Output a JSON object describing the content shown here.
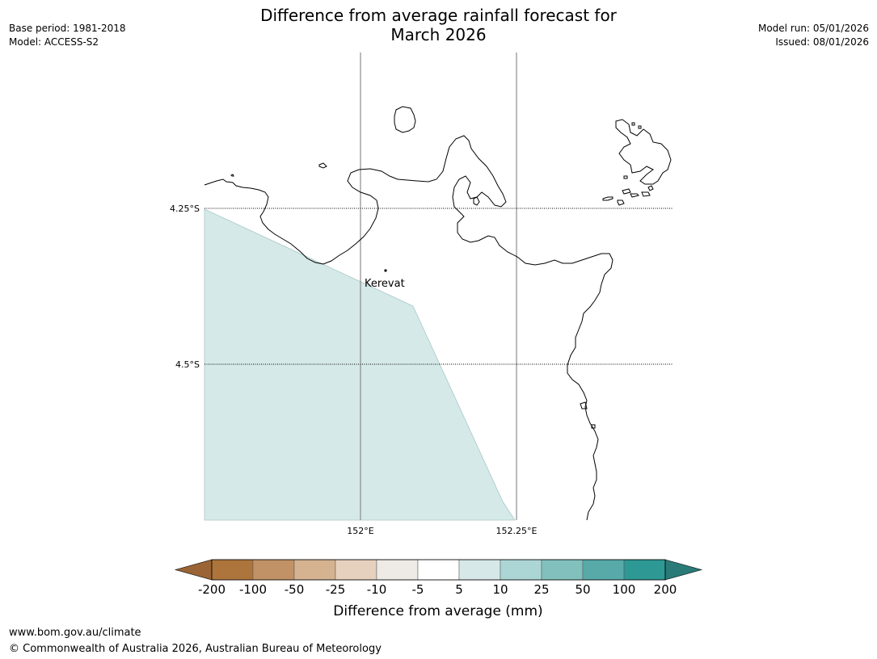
{
  "header": {
    "title_line1": "Difference from average rainfall forecast for",
    "title_line2": "March 2026",
    "base_period": "Base period: 1981-2018",
    "model": "Model: ACCESS-S2",
    "model_run": "Model run: 05/01/2026",
    "issued": "Issued: 08/01/2026"
  },
  "map": {
    "place_label": "Kerevat",
    "lat_labels": [
      "4.25°S",
      "4.5°S"
    ],
    "lon_labels": [
      "152°E",
      "152.25°E"
    ],
    "forecast_fill_color": "#d4e9e8",
    "coastline_color": "#000000"
  },
  "colorbar": {
    "tick_labels": [
      "-200",
      "-100",
      "-50",
      "-25",
      "-10",
      "-5",
      "5",
      "10",
      "25",
      "50",
      "100",
      "200"
    ],
    "colors": [
      "#9a6435",
      "#ad753c",
      "#c19266",
      "#d5b391",
      "#e6d1be",
      "#eeebe7",
      "#ffffff",
      "#d6e9e8",
      "#acd6d5",
      "#82c0bd",
      "#58aaa9",
      "#2d9894",
      "#2a7a78"
    ],
    "label": "Difference from average (mm)"
  },
  "footer": {
    "url": "www.bom.gov.au/climate",
    "copyright": "© Commonwealth of Australia 2026, Australian Bureau of Meteorology"
  }
}
